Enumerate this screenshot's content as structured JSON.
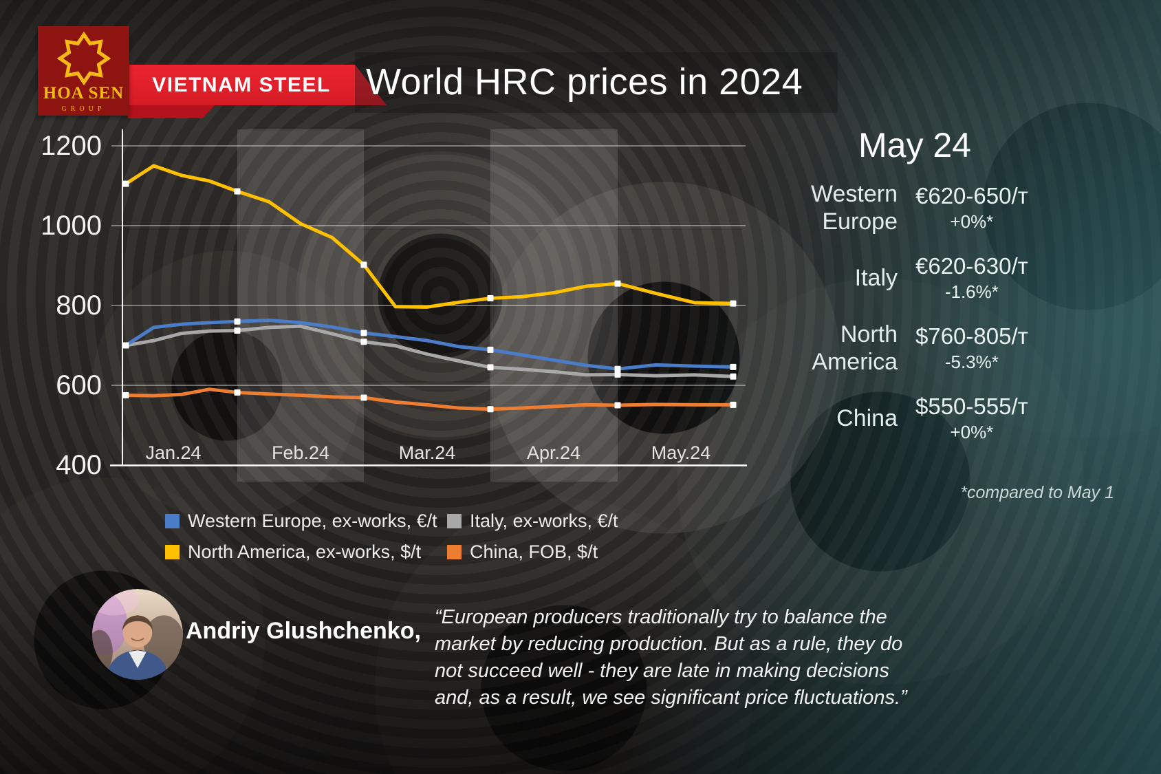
{
  "header": {
    "logo_name": "HOA SEN",
    "logo_subtitle": "GROUP",
    "banner": "VIETNAM STEEL",
    "title": "World HRC prices in 2024"
  },
  "chart_data": {
    "type": "line",
    "title": "World HRC prices in 2024",
    "x_labels": [
      "Jan.24",
      "Feb.24",
      "Mar.24",
      "Apr.24",
      "May.24"
    ],
    "y_ticks": [
      1200,
      1000,
      800,
      600,
      400
    ],
    "ylim": [
      400,
      1200
    ],
    "grid": true,
    "highlight_months": [
      "Feb.24",
      "Apr.24"
    ],
    "points_per_month": 4,
    "marker_indices": [
      0,
      4,
      8,
      12,
      16,
      19
    ],
    "z_order": [
      1,
      0,
      2,
      3
    ],
    "series": [
      {
        "name": "Western Europe, ex-works, €/t",
        "color": "#4a7cc7",
        "values": [
          700,
          745,
          753,
          757,
          760,
          763,
          757,
          746,
          731,
          722,
          712,
          697,
          689,
          676,
          663,
          650,
          641,
          651,
          648,
          646
        ]
      },
      {
        "name": "Italy, ex-works, €/t",
        "color": "#a8a8a8",
        "values": [
          700,
          712,
          730,
          736,
          737,
          745,
          748,
          729,
          709,
          699,
          678,
          661,
          645,
          640,
          634,
          626,
          627,
          624,
          626,
          622
        ]
      },
      {
        "name": "North America, ex-works, $/t",
        "color": "#ffc000",
        "values": [
          1105,
          1150,
          1126,
          1112,
          1086,
          1060,
          1005,
          970,
          902,
          797,
          796,
          808,
          818,
          822,
          832,
          848,
          855,
          830,
          807,
          805
        ]
      },
      {
        "name": "China, FOB, $/t",
        "color": "#ed7d31",
        "values": [
          575,
          574,
          577,
          590,
          582,
          578,
          575,
          571,
          569,
          558,
          551,
          543,
          540,
          543,
          547,
          551,
          550,
          552,
          551,
          551
        ]
      }
    ]
  },
  "panel": {
    "title": "May 24",
    "rows": [
      {
        "region": "Western Europe",
        "price": "€620-650/т",
        "change": "+0%*"
      },
      {
        "region": "Italy",
        "price": "€620-630/т",
        "change": "-1.6%*"
      },
      {
        "region": "North America",
        "price": "$760-805/т",
        "change": "-5.3%*"
      },
      {
        "region": "China",
        "price": "$550-555/т",
        "change": "+0%*"
      }
    ],
    "footnote": "*compared to May 1"
  },
  "quote": {
    "author": "Andriy Glushchenko,",
    "text": "“European producers traditionally try to balance the market by reducing production. But as a rule, they do not succeed well - they are late in making decisions and, as a result, we see significant price fluctuations.”"
  }
}
